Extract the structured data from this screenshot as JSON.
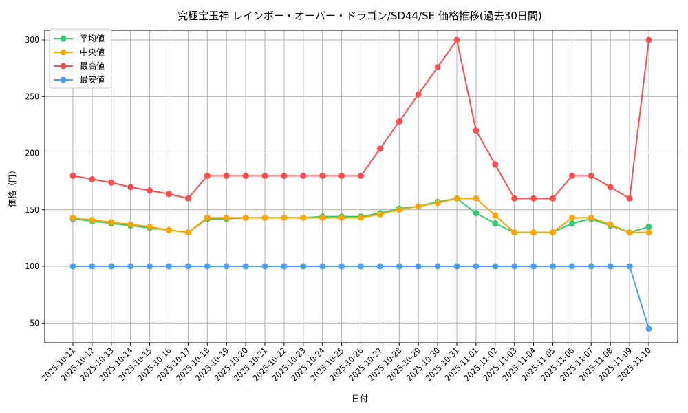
{
  "chart_data": {
    "type": "line",
    "title": "究極宝玉神 レインボー・オーバー・ドラゴン/SD44/SE 価格推移(過去30日間)",
    "xlabel": "日付",
    "ylabel": "価格（円）",
    "ylim": [
      32,
      312
    ],
    "yticks": [
      50,
      100,
      150,
      200,
      250,
      300
    ],
    "grid": true,
    "legend_position": "upper left",
    "categories": [
      "2025-10-11",
      "2025-10-12",
      "2025-10-13",
      "2025-10-14",
      "2025-10-15",
      "2025-10-16",
      "2025-10-17",
      "2025-10-18",
      "2025-10-19",
      "2025-10-20",
      "2025-10-21",
      "2025-10-22",
      "2025-10-23",
      "2025-10-24",
      "2025-10-25",
      "2025-10-26",
      "2025-10-27",
      "2025-10-28",
      "2025-10-29",
      "2025-10-30",
      "2025-10-31",
      "2025-11-01",
      "2025-11-02",
      "2025-11-03",
      "2025-11-04",
      "2025-11-05",
      "2025-11-06",
      "2025-11-07",
      "2025-11-08",
      "2025-11-09",
      "2025-11-10"
    ],
    "series": [
      {
        "name": "平均値",
        "color": "#2ecc71",
        "values": [
          142,
          140,
          138,
          136,
          134,
          132,
          130,
          142,
          142,
          143,
          143,
          143,
          143,
          144,
          144,
          144,
          147,
          151,
          153,
          157,
          160,
          147,
          138,
          130,
          130,
          130,
          138,
          142,
          136,
          130,
          135
        ]
      },
      {
        "name": "中央値",
        "color": "#ffa500",
        "values": [
          143,
          141,
          139,
          137,
          135,
          132,
          130,
          143,
          143,
          143,
          143,
          143,
          143,
          143,
          143,
          143,
          146,
          150,
          153,
          156,
          160,
          160,
          145,
          130,
          130,
          130,
          143,
          143,
          137,
          130,
          130
        ]
      },
      {
        "name": "最高値",
        "color": "#ff4d4d",
        "values": [
          180,
          177,
          174,
          170,
          167,
          164,
          160,
          180,
          180,
          180,
          180,
          180,
          180,
          180,
          180,
          180,
          204,
          228,
          252,
          276,
          300,
          220,
          190,
          160,
          160,
          160,
          180,
          180,
          170,
          160,
          300
        ]
      },
      {
        "name": "最安値",
        "color": "#4d9fff",
        "values": [
          100,
          100,
          100,
          100,
          100,
          100,
          100,
          100,
          100,
          100,
          100,
          100,
          100,
          100,
          100,
          100,
          100,
          100,
          100,
          100,
          100,
          100,
          100,
          100,
          100,
          100,
          100,
          100,
          100,
          100,
          45
        ]
      }
    ]
  },
  "legend": {
    "items": [
      {
        "label": "平均値",
        "color": "#2ecc71"
      },
      {
        "label": "中央値",
        "color": "#ffa500"
      },
      {
        "label": "最高値",
        "color": "#ff4d4d"
      },
      {
        "label": "最安値",
        "color": "#4d9fff"
      }
    ]
  }
}
